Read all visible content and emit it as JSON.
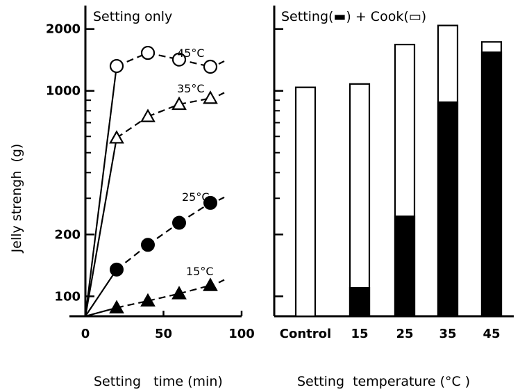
{
  "chart_data": [
    {
      "type": "line",
      "title": "Setting only",
      "xlabel": "Setting   time (min)",
      "ylabel": "Jelly strengh  (g)",
      "xlim": [
        0,
        100
      ],
      "ylim": [
        80,
        2600
      ],
      "yscale": "log",
      "xticks": [
        "0",
        "50",
        "100"
      ],
      "yticks": [
        "100",
        "200",
        "1000",
        "2000"
      ],
      "series": [
        {
          "name": "45°C",
          "marker": "open-circle",
          "x": [
            0,
            20,
            40,
            60,
            80
          ],
          "y": [
            80,
            1320,
            1530,
            1420,
            1310
          ]
        },
        {
          "name": "35°C",
          "marker": "open-triangle",
          "x": [
            0,
            20,
            40,
            60,
            80
          ],
          "y": [
            80,
            590,
            750,
            860,
            920
          ]
        },
        {
          "name": "25°C",
          "marker": "filled-circle",
          "x": [
            0,
            20,
            40,
            60,
            80
          ],
          "y": [
            80,
            135,
            178,
            228,
            285
          ]
        },
        {
          "name": "15°C",
          "marker": "filled-triangle",
          "x": [
            0,
            20,
            40,
            60,
            80
          ],
          "y": [
            80,
            88,
            95,
            103,
            113
          ]
        }
      ]
    },
    {
      "type": "bar",
      "title": "Setting(▬) + Cook(▭)",
      "xlabel": "Setting  temperature (°C )",
      "ylim": [
        80,
        2600
      ],
      "yscale": "log",
      "categories": [
        "Control",
        "15",
        "25",
        "35",
        "45"
      ],
      "series": [
        {
          "name": "Setting",
          "color": "#000000",
          "values": [
            null,
            110,
            245,
            880,
            1540
          ]
        },
        {
          "name": "Setting + Cook",
          "color": "#ffffff",
          "values": [
            1040,
            1080,
            1680,
            2080,
            1730
          ]
        }
      ]
    }
  ]
}
